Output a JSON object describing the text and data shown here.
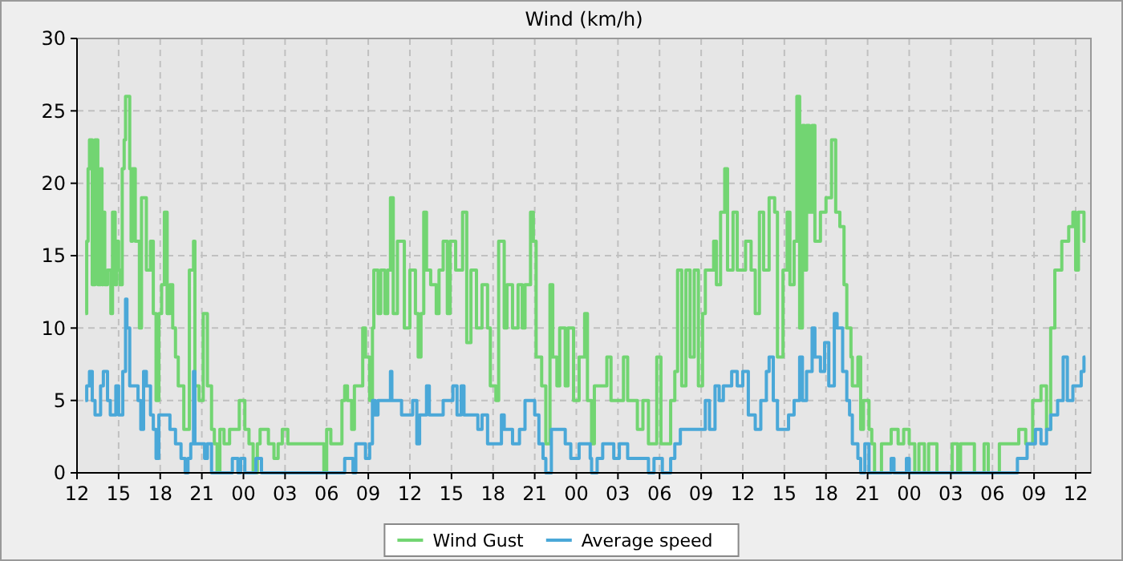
{
  "chart_data": {
    "type": "step",
    "title": "Wind (km/h)",
    "xlim": [
      12,
      85.1
    ],
    "ylim": [
      0,
      30
    ],
    "yticks": [
      0,
      5,
      10,
      15,
      20,
      25,
      30
    ],
    "xticks": [
      12,
      15,
      18,
      21,
      {
        "value": 24,
        "label": "00"
      },
      {
        "value": 27,
        "label": "03"
      },
      {
        "value": 30,
        "label": "06"
      },
      {
        "value": 33,
        "label": "09"
      },
      {
        "value": 36,
        "label": "12"
      },
      {
        "value": 39,
        "label": "15"
      },
      {
        "value": 42,
        "label": "18"
      },
      {
        "value": 45,
        "label": "21"
      },
      {
        "value": 48,
        "label": "00"
      },
      {
        "value": 51,
        "label": "03"
      },
      {
        "value": 54,
        "label": "06"
      },
      {
        "value": 57,
        "label": "09"
      },
      {
        "value": 60,
        "label": "12"
      },
      {
        "value": 63,
        "label": "15"
      },
      {
        "value": 66,
        "label": "18"
      },
      {
        "value": 69,
        "label": "21"
      },
      {
        "value": 72,
        "label": "00"
      },
      {
        "value": 75,
        "label": "03"
      },
      {
        "value": 78,
        "label": "06"
      },
      {
        "value": 81,
        "label": "09"
      },
      {
        "value": 84,
        "label": "12"
      }
    ],
    "grid": true,
    "legend": "bottom",
    "line_style": "solid",
    "marker": "none",
    "series": [
      {
        "name": "Wind Gust",
        "color": "#72d572",
        "x": [
          12.6,
          12.7,
          12.8,
          12.9,
          13.1,
          13.3,
          13.5,
          13.7,
          13.8,
          13.9,
          14.0,
          14.2,
          14.44,
          14.56,
          14.75,
          14.85,
          15.0,
          15.1,
          15.26,
          15.4,
          15.5,
          15.8,
          15.9,
          16.0,
          16.2,
          16.5,
          16.65,
          17.0,
          17.3,
          17.5,
          17.7,
          17.9,
          18.1,
          18.3,
          18.5,
          18.7,
          18.9,
          19.1,
          19.3,
          19.7,
          20.1,
          20.4,
          20.5,
          20.8,
          21.1,
          21.4,
          21.7,
          21.9,
          22.1,
          22.3,
          22.6,
          23.0,
          23.7,
          24.1,
          24.4,
          24.7,
          25.0,
          25.2,
          25.8,
          26.2,
          26.5,
          26.8,
          27.2,
          27.5,
          29.8,
          30.0,
          30.3,
          31.0,
          31.1,
          31.3,
          31.5,
          31.8,
          32.0,
          32.6,
          32.8,
          33.1,
          33.3,
          33.4,
          33.7,
          33.9,
          34.2,
          34.4,
          34.6,
          34.8,
          35.1,
          35.6,
          36.0,
          36.4,
          36.6,
          36.8,
          37.0,
          37.2,
          37.5,
          37.9,
          38.1,
          38.4,
          38.7,
          38.9,
          39.3,
          39.8,
          40.1,
          40.4,
          40.8,
          41.2,
          41.6,
          41.8,
          42.2,
          42.4,
          42.8,
          43.0,
          43.4,
          43.8,
          44.1,
          44.3,
          44.7,
          44.9,
          45.1,
          45.5,
          45.8,
          46.1,
          46.3,
          46.6,
          46.8,
          47.2,
          47.4,
          47.8,
          48.2,
          48.6,
          48.8,
          49.1,
          49.3,
          50.2,
          50.5,
          51.4,
          51.7,
          52.4,
          52.8,
          53.2,
          53.8,
          54.1,
          54.4,
          54.8,
          55.1,
          55.3,
          55.6,
          55.9,
          56.2,
          56.5,
          56.8,
          57.1,
          57.3,
          57.9,
          58.1,
          58.4,
          58.7,
          58.9,
          59.3,
          59.6,
          60.2,
          60.6,
          60.9,
          61.2,
          61.5,
          61.9,
          62.3,
          62.5,
          62.9,
          63.2,
          63.4,
          63.7,
          63.9,
          64.1,
          64.3,
          64.45,
          64.6,
          64.8,
          65.0,
          65.2,
          65.6,
          66.0,
          66.4,
          66.7,
          67.0,
          67.3,
          67.5,
          67.8,
          67.9,
          68.3,
          68.5,
          68.7,
          69.1,
          69.3,
          69.5,
          70.0,
          70.7,
          71.2,
          71.6,
          72.0,
          72.4,
          72.7,
          73.1,
          73.4,
          74.0,
          75.1,
          75.5,
          75.7,
          76.7,
          77.4,
          77.7,
          78.5,
          79.9,
          80.4,
          80.9,
          81.5,
          81.9,
          82.2,
          82.5,
          83.0,
          83.5,
          83.8,
          84.0,
          84.2,
          84.6,
          84.7
        ],
        "values": [
          11,
          16,
          21,
          23,
          13,
          23,
          13,
          21,
          13,
          18,
          13,
          14,
          11,
          18,
          13,
          16,
          14,
          13,
          21,
          23,
          26,
          21,
          16,
          21,
          16,
          10,
          19,
          14,
          16,
          11,
          5,
          11,
          13,
          18,
          11,
          13,
          10,
          8,
          6,
          3,
          14,
          16,
          6,
          5,
          11,
          6,
          3,
          2,
          0,
          3,
          2,
          3,
          5,
          3,
          2,
          0,
          2,
          3,
          2,
          1,
          2,
          3,
          2,
          2,
          0,
          3,
          2,
          2,
          5,
          6,
          5,
          3,
          6,
          10,
          8,
          5,
          10,
          14,
          11,
          14,
          11,
          14,
          19,
          11,
          16,
          10,
          14,
          11,
          8,
          11,
          18,
          14,
          13,
          11,
          14,
          16,
          11,
          16,
          14,
          18,
          9,
          14,
          10,
          13,
          10,
          6,
          5,
          16,
          10,
          13,
          10,
          13,
          10,
          13,
          18,
          16,
          8,
          6,
          2,
          13,
          8,
          6,
          10,
          6,
          10,
          5,
          8,
          11,
          5,
          2,
          6,
          8,
          5,
          8,
          5,
          3,
          5,
          2,
          8,
          2,
          2,
          5,
          7,
          14,
          6,
          14,
          8,
          14,
          6,
          11,
          14,
          16,
          13,
          18,
          21,
          14,
          18,
          14,
          16,
          14,
          11,
          18,
          14,
          19,
          18,
          8,
          14,
          18,
          13,
          16,
          26,
          10,
          24,
          14,
          24,
          18,
          24,
          16,
          18,
          19,
          23,
          18,
          17,
          13,
          10,
          8,
          6,
          8,
          3,
          5,
          3,
          2,
          0,
          2,
          3,
          2,
          3,
          2,
          0,
          2,
          0,
          2,
          0,
          2,
          0,
          2,
          0,
          2,
          0,
          2,
          3,
          2,
          5,
          6,
          3,
          10,
          14,
          16,
          17,
          18,
          14,
          18,
          16,
          16
        ]
      },
      {
        "name": "Average speed",
        "color": "#4aa8d8",
        "x": [
          12.6,
          12.7,
          12.9,
          13.1,
          13.3,
          13.7,
          13.9,
          14.2,
          14.4,
          14.8,
          15.0,
          15.3,
          15.5,
          15.6,
          15.8,
          16.4,
          16.6,
          16.8,
          17.0,
          17.3,
          17.5,
          17.7,
          17.9,
          18.7,
          19.1,
          19.5,
          19.8,
          20.0,
          20.2,
          20.4,
          20.5,
          21.2,
          21.4,
          21.7,
          23.2,
          23.6,
          23.8,
          24.1,
          24.9,
          25.3,
          31.3,
          31.9,
          32.1,
          32.8,
          33.1,
          33.3,
          33.5,
          33.7,
          34.6,
          34.7,
          35.4,
          36.2,
          36.5,
          36.7,
          37.2,
          37.4,
          38.4,
          39.1,
          39.4,
          39.7,
          39.9,
          40.9,
          41.2,
          41.6,
          42.6,
          42.8,
          43.4,
          43.9,
          44.3,
          45.0,
          45.3,
          45.6,
          45.8,
          46.2,
          47.2,
          47.6,
          48.2,
          49.0,
          49.1,
          49.5,
          49.9,
          50.7,
          51.1,
          51.7,
          53.2,
          53.6,
          54.2,
          54.8,
          55.1,
          55.5,
          57.3,
          57.6,
          58.0,
          58.3,
          58.6,
          59.2,
          59.6,
          60.0,
          60.4,
          60.9,
          61.3,
          61.7,
          61.9,
          62.2,
          62.5,
          63.3,
          63.7,
          64.1,
          64.3,
          64.6,
          65.0,
          65.2,
          65.6,
          65.9,
          66.2,
          66.6,
          66.8,
          67.2,
          67.5,
          67.7,
          67.9,
          68.3,
          68.5,
          68.8,
          69.1,
          70.7,
          70.9,
          71.8,
          72.0,
          79.8,
          80.5,
          81.1,
          81.5,
          81.9,
          82.2,
          82.7,
          83.1,
          83.4,
          83.8,
          84.4,
          84.6,
          84.7
        ],
        "values": [
          5,
          6,
          7,
          5,
          4,
          6,
          7,
          5,
          4,
          6,
          4,
          7,
          12,
          10,
          6,
          5,
          3,
          7,
          6,
          4,
          3,
          1,
          4,
          3,
          2,
          1,
          0,
          1,
          2,
          7,
          2,
          1,
          2,
          0,
          1,
          0,
          1,
          0,
          1,
          0,
          1,
          0,
          2,
          1,
          2,
          5,
          4,
          5,
          7,
          5,
          4,
          5,
          2,
          4,
          6,
          4,
          5,
          6,
          4,
          6,
          4,
          3,
          4,
          2,
          4,
          3,
          2,
          3,
          5,
          4,
          2,
          1,
          0,
          3,
          2,
          1,
          2,
          1,
          0,
          1,
          2,
          1,
          2,
          1,
          0,
          1,
          0,
          1,
          2,
          3,
          5,
          3,
          6,
          5,
          6,
          7,
          6,
          7,
          4,
          3,
          5,
          7,
          8,
          5,
          3,
          4,
          5,
          8,
          5,
          7,
          10,
          8,
          7,
          9,
          6,
          11,
          10,
          7,
          5,
          4,
          2,
          1,
          0,
          2,
          0,
          1,
          0,
          1,
          0,
          1,
          2,
          3,
          2,
          3,
          4,
          5,
          8,
          5,
          6,
          7,
          8,
          8
        ]
      }
    ]
  }
}
